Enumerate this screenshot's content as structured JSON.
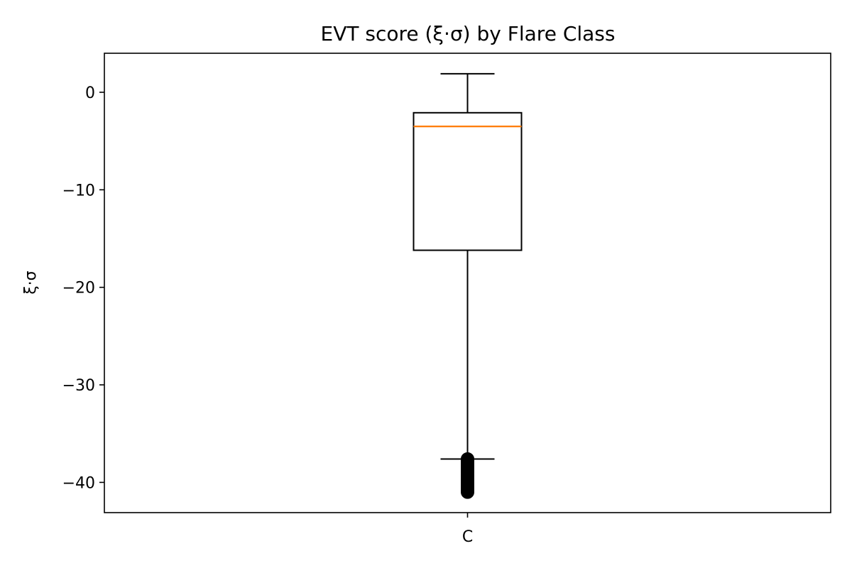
{
  "chart_data": {
    "type": "box",
    "title": "EVT score (ξ·σ) by Flare Class",
    "xlabel": "",
    "ylabel": "ξ·σ",
    "categories": [
      "C"
    ],
    "ylim": [
      -43.1,
      4.0
    ],
    "yticks": [
      0,
      -10,
      -20,
      -30,
      -40
    ],
    "ytick_labels": [
      "0",
      "−10",
      "−20",
      "−30",
      "−40"
    ],
    "grid": false,
    "boxes": [
      {
        "category": "C",
        "whisker_high": 1.9,
        "q3": -2.1,
        "median": -3.5,
        "q1": -16.2,
        "whisker_low": -37.6,
        "outliers": [
          -37.6,
          -37.8,
          -38.0,
          -38.2,
          -38.4,
          -38.6,
          -38.8,
          -39.0,
          -39.2,
          -39.4,
          -39.6,
          -39.8,
          -40.0,
          -40.2,
          -40.4,
          -40.6,
          -40.8,
          -41.0
        ]
      }
    ],
    "colors": {
      "box": "#000000",
      "median": "#ff7f0e",
      "outlier": "#000000"
    }
  }
}
